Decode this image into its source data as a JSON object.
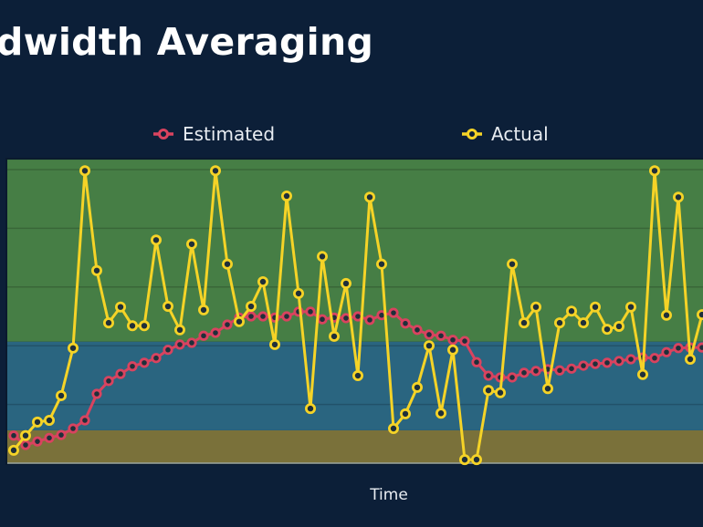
{
  "chart_data": {
    "type": "line",
    "title": "dwidth Averaging",
    "xlabel": "Time",
    "ylabel": "",
    "ylim": [
      0,
      5.17
    ],
    "yticks": [
      0,
      1,
      2,
      3,
      4,
      5
    ],
    "grid": true,
    "legend_placement": "top-center",
    "bands": [
      {
        "from": 0,
        "to": 0.56,
        "color": "#7a713a"
      },
      {
        "from": 0.56,
        "to": 2.07,
        "color": "#2a6580"
      },
      {
        "from": 2.07,
        "to": 5.17,
        "color": "#467e45"
      }
    ],
    "x": [
      0,
      1,
      2,
      3,
      4,
      5,
      6,
      7,
      8,
      9,
      10,
      11,
      12,
      13,
      14,
      15,
      16,
      17,
      18,
      19,
      20,
      21,
      22,
      23,
      24,
      25,
      26,
      27,
      28,
      29,
      30,
      31,
      32,
      33,
      34,
      35,
      36,
      37,
      38,
      39,
      40,
      41,
      42,
      43,
      44,
      45,
      46,
      47,
      48,
      49,
      50,
      51,
      52,
      53,
      54,
      55,
      56,
      57,
      58
    ],
    "series": [
      {
        "name": "Estimated",
        "color": "#d9435f",
        "values": [
          0.47,
          0.31,
          0.37,
          0.43,
          0.48,
          0.59,
          0.73,
          1.18,
          1.4,
          1.52,
          1.65,
          1.71,
          1.79,
          1.93,
          2.02,
          2.05,
          2.17,
          2.22,
          2.36,
          2.48,
          2.5,
          2.5,
          2.48,
          2.5,
          2.58,
          2.58,
          2.45,
          2.48,
          2.47,
          2.5,
          2.44,
          2.52,
          2.56,
          2.38,
          2.27,
          2.19,
          2.17,
          2.1,
          2.08,
          1.72,
          1.49,
          1.46,
          1.46,
          1.54,
          1.57,
          1.6,
          1.58,
          1.61,
          1.66,
          1.69,
          1.71,
          1.74,
          1.77,
          1.8,
          1.79,
          1.89,
          1.96,
          1.97,
          1.97
        ]
      },
      {
        "name": "Actual",
        "color": "#f5d327",
        "values": [
          0.22,
          0.47,
          0.7,
          0.73,
          1.15,
          1.96,
          4.98,
          3.28,
          2.39,
          2.66,
          2.34,
          2.34,
          3.8,
          2.67,
          2.27,
          3.73,
          2.61,
          4.98,
          3.39,
          2.41,
          2.67,
          3.09,
          2.02,
          4.55,
          2.89,
          0.93,
          3.52,
          2.16,
          3.06,
          1.49,
          4.53,
          3.39,
          0.59,
          0.84,
          1.29,
          2.0,
          0.85,
          1.93,
          0.06,
          0.06,
          1.24,
          1.2,
          3.39,
          2.39,
          2.66,
          1.27,
          2.39,
          2.59,
          2.39,
          2.66,
          2.28,
          2.33,
          2.66,
          1.51,
          4.98,
          2.52,
          4.53,
          1.77,
          2.53
        ]
      }
    ]
  }
}
